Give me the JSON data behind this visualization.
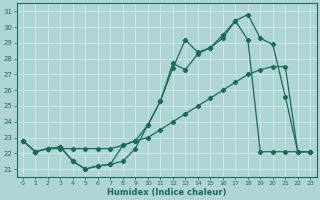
{
  "xlabel": "Humidex (Indice chaleur)",
  "xlim": [
    -0.5,
    23.5
  ],
  "ylim": [
    20.5,
    31.5
  ],
  "yticks": [
    21,
    22,
    23,
    24,
    25,
    26,
    27,
    28,
    29,
    30,
    31
  ],
  "xticks": [
    0,
    1,
    2,
    3,
    4,
    5,
    6,
    7,
    8,
    9,
    10,
    11,
    12,
    13,
    14,
    15,
    16,
    17,
    18,
    19,
    20,
    21,
    22,
    23
  ],
  "bg_color": "#aed4d4",
  "grid_color": "#c8e8e8",
  "line_color": "#1a6b5a",
  "line1_x": [
    0,
    1,
    2,
    3,
    4,
    5,
    6,
    7,
    8,
    9,
    10,
    11,
    12,
    13,
    14,
    15,
    16,
    17,
    18,
    19,
    20,
    21,
    22,
    23
  ],
  "line1_y": [
    22.8,
    22.1,
    22.3,
    22.4,
    21.5,
    21.0,
    21.2,
    21.3,
    22.5,
    22.8,
    23.8,
    25.3,
    27.4,
    29.2,
    28.4,
    28.7,
    29.3,
    30.4,
    30.8,
    29.3,
    28.9,
    25.6,
    22.1,
    22.1
  ],
  "line2_x": [
    0,
    1,
    2,
    3,
    4,
    5,
    6,
    7,
    8,
    9,
    10,
    11,
    12,
    13,
    14,
    15,
    16,
    17,
    18,
    19,
    20,
    21,
    22,
    23
  ],
  "line2_y": [
    22.8,
    22.1,
    22.3,
    22.4,
    21.5,
    21.0,
    21.2,
    21.3,
    21.5,
    22.3,
    23.8,
    25.3,
    27.7,
    27.3,
    28.3,
    28.7,
    29.5,
    30.4,
    29.2,
    22.1,
    22.1,
    22.1,
    22.1,
    22.1
  ],
  "line3_x": [
    0,
    1,
    2,
    3,
    4,
    5,
    6,
    7,
    8,
    9,
    10,
    11,
    12,
    13,
    14,
    15,
    16,
    17,
    18,
    19,
    20,
    21,
    22,
    23
  ],
  "line3_y": [
    22.8,
    22.1,
    22.3,
    22.3,
    22.3,
    22.3,
    22.3,
    22.3,
    22.5,
    22.8,
    23.0,
    23.5,
    24.0,
    24.5,
    25.0,
    25.5,
    26.0,
    26.5,
    27.0,
    27.3,
    27.5,
    27.5,
    22.1,
    22.1
  ]
}
